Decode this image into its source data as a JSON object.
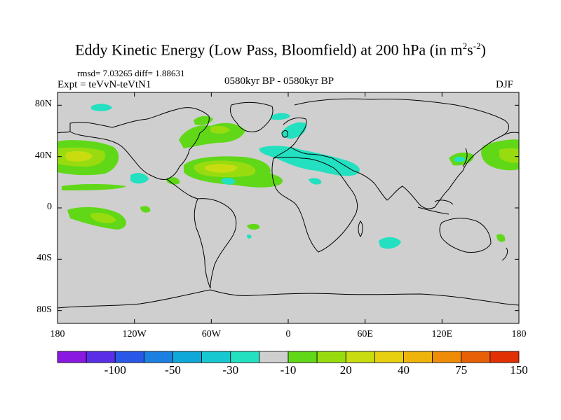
{
  "figure": {
    "title_main": "Eddy Kinetic Energy (Low Pass, Bloomfield) at 200 hPa (in m",
    "title_sup1": "2",
    "title_mid": "s",
    "title_sup2": "-2",
    "title_end": ")",
    "stats": "rmsd= 7.03265 diff= 1.88631",
    "experiment": "Expt = teVvN-teVtN1",
    "period": "0580kyr BP - 0580kyr BP",
    "season": "DJF"
  },
  "map": {
    "projection": "cylindrical-equidistant",
    "lat_range": [
      -90,
      90
    ],
    "lon_range": [
      -180,
      180
    ],
    "land_color": "#cfcfcf",
    "y_tick_labels": [
      "80N",
      "40N",
      "0",
      "40S",
      "80S"
    ],
    "y_tick_values": [
      80,
      40,
      0,
      -40,
      -80
    ],
    "x_tick_labels": [
      "180",
      "120W",
      "60W",
      "0",
      "60E",
      "120E",
      "180"
    ],
    "x_tick_values": [
      -180,
      -120,
      -60,
      0,
      60,
      120,
      180
    ]
  },
  "colorbar": {
    "colors": [
      "#8a18e0",
      "#5a2ee6",
      "#2a58e6",
      "#1c80e0",
      "#10a8d8",
      "#18c8d0",
      "#22e0c0",
      "#cfcfcf",
      "#60d818",
      "#98dc10",
      "#c8dc10",
      "#e6d010",
      "#eeb40c",
      "#ee8c08",
      "#e86006",
      "#e03004"
    ],
    "tick_labels": [
      "-100",
      "-50",
      "-30",
      "-10",
      "20",
      "40",
      "75",
      "150"
    ]
  },
  "field_colors": {
    "cyan": "#22e0c0",
    "green": "#60d818",
    "yellowgreen": "#98dc10",
    "yellow": "#c8dc10"
  }
}
